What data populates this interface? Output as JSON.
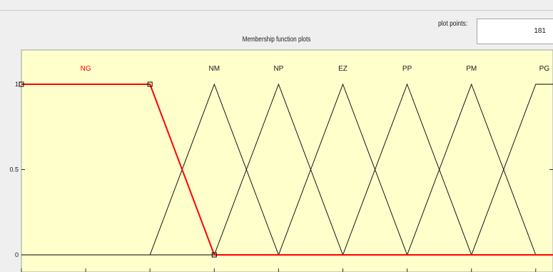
{
  "panel": {
    "title": "Membership function plots",
    "plot_points_label": "plot points:",
    "plot_points_value": "181"
  },
  "colors": {
    "plot_background": "#ffffcc",
    "curve": "#000000",
    "selected_curve": "#ff0000",
    "selected_label": "#ff0000",
    "frame": "#a0a0a0"
  },
  "chart_data": {
    "type": "line",
    "title": "",
    "xlabel": "",
    "ylabel": "",
    "xlim": [
      -1,
      1
    ],
    "ylim": [
      0,
      1
    ],
    "yticks": [
      0,
      0.5,
      1
    ],
    "ytick_labels": [
      "0",
      "0.5",
      "1"
    ],
    "selected": "NG",
    "series": [
      {
        "name": "NG",
        "x": [
          -1,
          -0.6,
          -0.4,
          1
        ],
        "y": [
          1,
          1,
          0,
          0
        ]
      },
      {
        "name": "NM",
        "x": [
          -1,
          -0.6,
          -0.4,
          -0.2,
          1
        ],
        "y": [
          0,
          0,
          1,
          0,
          0
        ]
      },
      {
        "name": "NP",
        "x": [
          -1,
          -0.4,
          -0.2,
          0,
          1
        ],
        "y": [
          0,
          0,
          1,
          0,
          0
        ]
      },
      {
        "name": "EZ",
        "x": [
          -1,
          -0.2,
          0,
          0.2,
          1
        ],
        "y": [
          0,
          0,
          1,
          0,
          0
        ]
      },
      {
        "name": "PP",
        "x": [
          -1,
          0,
          0.2,
          0.4,
          1
        ],
        "y": [
          0,
          0,
          1,
          0,
          0
        ]
      },
      {
        "name": "PM",
        "x": [
          -1,
          0.2,
          0.4,
          0.6,
          1
        ],
        "y": [
          0,
          0,
          1,
          0,
          0
        ]
      },
      {
        "name": "PG",
        "x": [
          -1,
          0.4,
          0.6,
          1
        ],
        "y": [
          0,
          0,
          1,
          1
        ]
      }
    ]
  }
}
